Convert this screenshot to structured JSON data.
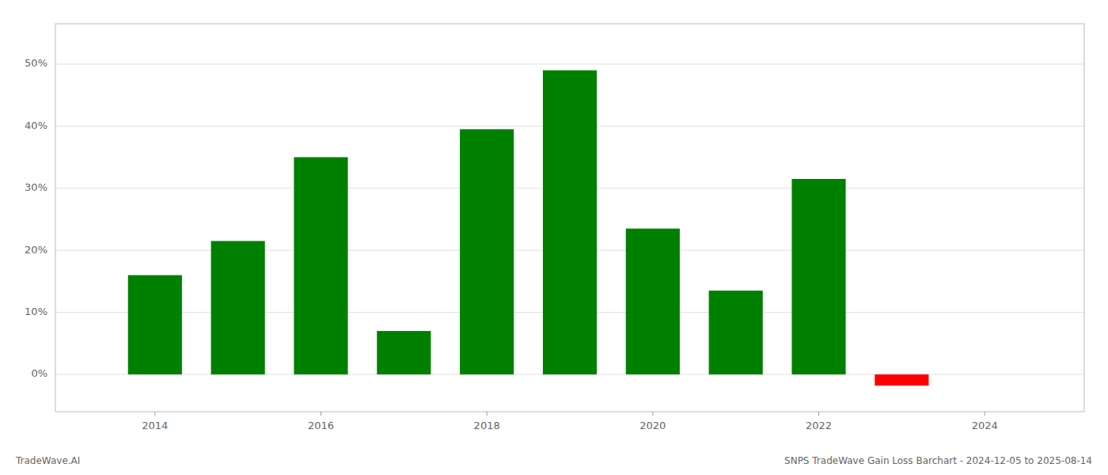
{
  "chart_data": {
    "type": "bar",
    "title": "SNPS TradeWave Gain Loss Barchart - 2024-12-05 to 2025-08-14",
    "annotations": [
      "TradeWave.AI"
    ],
    "x": [
      2014,
      2015,
      2016,
      2017,
      2018,
      2019,
      2020,
      2021,
      2022,
      2023
    ],
    "values": [
      0.16,
      0.215,
      0.35,
      0.07,
      0.395,
      0.49,
      0.235,
      0.135,
      0.315,
      -0.018
    ],
    "colors": [
      "#008000",
      "#008000",
      "#008000",
      "#008000",
      "#008000",
      "#008000",
      "#008000",
      "#008000",
      "#008000",
      "#ff0000"
    ],
    "xlim": [
      2012.8,
      2025.2
    ],
    "ylim": [
      -0.06,
      0.565
    ],
    "xticks": [
      2014,
      2016,
      2018,
      2020,
      2022,
      2024
    ],
    "yticks": [
      {
        "value": 0.0,
        "label": "0%"
      },
      {
        "value": 0.1,
        "label": "10%"
      },
      {
        "value": 0.2,
        "label": "20%"
      },
      {
        "value": 0.3,
        "label": "30%"
      },
      {
        "value": 0.4,
        "label": "40%"
      },
      {
        "value": 0.5,
        "label": "50%"
      }
    ],
    "grid": true
  }
}
